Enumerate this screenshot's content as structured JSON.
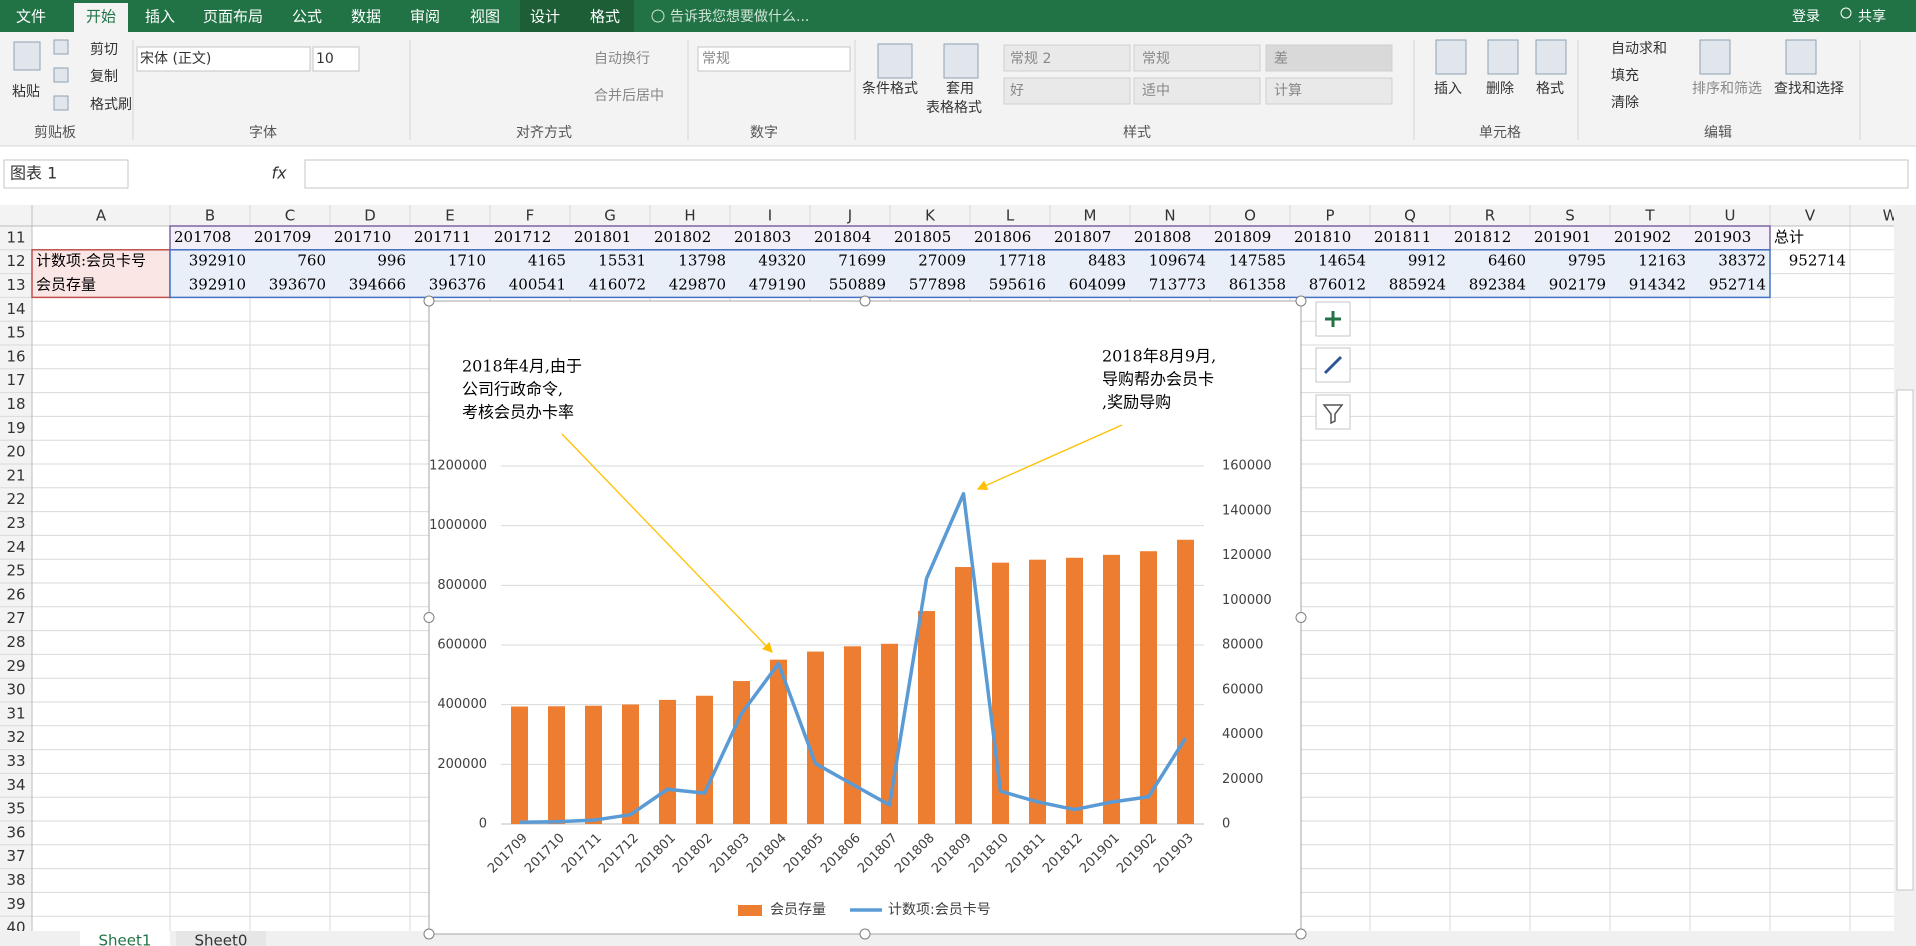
{
  "ribbon": {
    "tabs": [
      "文件",
      "开始",
      "插入",
      "页面布局",
      "公式",
      "数据",
      "审阅",
      "视图",
      "设计",
      "格式"
    ],
    "tell_me": "告诉我您想要做什么...",
    "login": "登录",
    "share": "共享",
    "items": [
      "粘贴",
      "剪切",
      "复制",
      "格式刷",
      "宋体 (正文)",
      "10",
      "自动换行",
      "合并后居中",
      "常规",
      "条件格式",
      "套用",
      "表格格式",
      "常规 2",
      "常规",
      "差",
      "好",
      "适中",
      "计算",
      "插入",
      "删除",
      "格式",
      "自动求和",
      "填充",
      "清除",
      "排序和筛选",
      "查找和选择"
    ],
    "groups": [
      "剪贴板",
      "字体",
      "对齐方式",
      "数字",
      "样式",
      "单元格",
      "编辑"
    ]
  },
  "formula_bar": {
    "name_box": "图表 1",
    "fx": "fx"
  },
  "sheet": {
    "columns": [
      "A",
      "B",
      "C",
      "D",
      "E",
      "F",
      "G",
      "H",
      "I",
      "J",
      "K",
      "L",
      "M",
      "N",
      "O",
      "P",
      "Q",
      "R",
      "S",
      "T",
      "U",
      "V",
      "W"
    ],
    "row_numbers": [
      11,
      12,
      13,
      14,
      15,
      16,
      17,
      18,
      19,
      20,
      21,
      22,
      23,
      24,
      25,
      26,
      27,
      28,
      29,
      30,
      31,
      32,
      33,
      34,
      35,
      36,
      37,
      38,
      39,
      40
    ],
    "header": [
      "201708",
      "201709",
      "201710",
      "201711",
      "201712",
      "201801",
      "201802",
      "201803",
      "201804",
      "201805",
      "201806",
      "201807",
      "201808",
      "201809",
      "201810",
      "201811",
      "201812",
      "201901",
      "201902",
      "201903",
      "总计"
    ],
    "rows": [
      {
        "label": "计数项:会员卡号",
        "values": [
          392910,
          760,
          996,
          1710,
          4165,
          15531,
          13798,
          49320,
          71699,
          27009,
          17718,
          8483,
          109674,
          147585,
          14654,
          9912,
          6460,
          9795,
          12163,
          38372,
          952714
        ]
      },
      {
        "label": "会员存量",
        "values": [
          392910,
          393670,
          394666,
          396376,
          400541,
          416072,
          429870,
          479190,
          550889,
          577898,
          595616,
          604099,
          713773,
          861358,
          876012,
          885924,
          892384,
          902179,
          914342,
          952714
        ]
      }
    ],
    "tabs": [
      "Sheet1",
      "Sheet0"
    ]
  },
  "chart_data": {
    "type": "combo",
    "categories": [
      "201709",
      "201710",
      "201711",
      "201712",
      "201801",
      "201802",
      "201803",
      "201804",
      "201805",
      "201806",
      "201807",
      "201808",
      "201809",
      "201810",
      "201811",
      "201812",
      "201901",
      "201902",
      "201903"
    ],
    "series": [
      {
        "name": "会员存量",
        "type": "bar",
        "color": "#ed7d31",
        "values": [
          393670,
          394666,
          396376,
          400541,
          416072,
          429870,
          479190,
          550889,
          577898,
          595616,
          604099,
          713773,
          861358,
          876012,
          885924,
          892384,
          902179,
          914342,
          952714
        ]
      },
      {
        "name": "计数项:会员卡号",
        "type": "line",
        "color": "#5b9bd5",
        "axis": "y2",
        "values": [
          760,
          996,
          1710,
          4165,
          15531,
          13798,
          49320,
          71699,
          27009,
          17718,
          8483,
          109674,
          147585,
          14654,
          9912,
          6460,
          9795,
          12163,
          38372
        ]
      }
    ],
    "ylim": [
      0,
      1200000
    ],
    "yticks": [
      0,
      200000,
      400000,
      600000,
      800000,
      1000000,
      1200000
    ],
    "y2lim": [
      0,
      160000
    ],
    "y2ticks": [
      0,
      20000,
      40000,
      60000,
      80000,
      100000,
      120000,
      140000,
      160000
    ],
    "grid": true,
    "legend": "bottom",
    "annotations": [
      {
        "lines": [
          "2018年4月,由于",
          "公司行政命令,",
          "考核会员办卡率"
        ]
      },
      {
        "lines": [
          "2018年8月9月,",
          "导购帮办会员卡",
          ",奖励导购"
        ]
      }
    ]
  }
}
